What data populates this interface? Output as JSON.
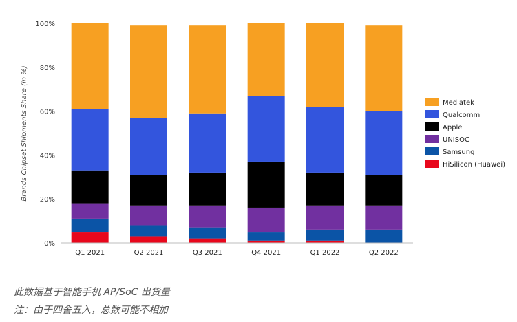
{
  "chart_data": {
    "type": "bar",
    "stacked": true,
    "categories": [
      "Q1 2021",
      "Q2 2021",
      "Q3 2021",
      "Q4 2021",
      "Q1 2022",
      "Q2 2022"
    ],
    "ylabel": "Brands Chipset Shipments Share (in %)",
    "xlabel": "",
    "ylim": [
      0,
      100
    ],
    "yticks": [
      "0%",
      "20%",
      "40%",
      "60%",
      "80%",
      "100%"
    ],
    "grid": false,
    "legend_position": "right",
    "series": [
      {
        "name": "HiSilicon (Huawei)",
        "color": "#e8071c",
        "values": [
          5,
          3,
          2,
          1,
          1,
          0
        ]
      },
      {
        "name": "Samsung",
        "color": "#0b54a6",
        "values": [
          6,
          5,
          5,
          4,
          5,
          6
        ]
      },
      {
        "name": "UNISOC",
        "color": "#7130a0",
        "values": [
          7,
          9,
          10,
          11,
          11,
          11
        ]
      },
      {
        "name": "Apple",
        "color": "#000000",
        "values": [
          15,
          14,
          15,
          21,
          15,
          14
        ]
      },
      {
        "name": "Qualcomm",
        "color": "#3355dd",
        "values": [
          28,
          26,
          27,
          30,
          30,
          29
        ]
      },
      {
        "name": "Mediatek",
        "color": "#f7a022",
        "values": [
          39,
          42,
          40,
          33,
          38,
          39
        ]
      }
    ],
    "legend_order": [
      "Mediatek",
      "Qualcomm",
      "Apple",
      "UNISOC",
      "Samsung",
      "HiSilicon (Huawei)"
    ]
  },
  "notes": {
    "line1": "此数据基于智能手机 AP/SoC 出货量",
    "line2": "注：由于四舍五入，总数可能不相加"
  }
}
